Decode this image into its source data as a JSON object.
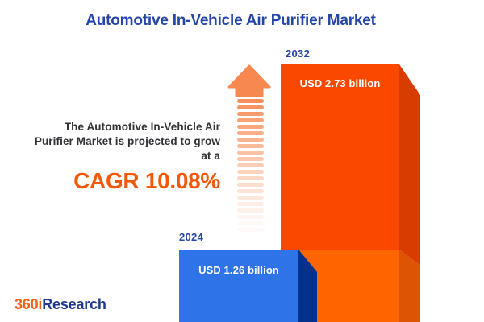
{
  "header": {
    "title": "Automotive In-Vehicle Air Purifier Market"
  },
  "annotation": {
    "lines": [
      "The Automotive In-Vehicle Air",
      "Purifier Market is projected to grow",
      "at a"
    ],
    "cagr_label": "CAGR 10.08%"
  },
  "chart_data": {
    "type": "bar",
    "title": "Automotive In-Vehicle Air Purifier Market",
    "categories": [
      "2024",
      "2032"
    ],
    "values": [
      1.26,
      2.73
    ],
    "unit": "USD billion",
    "value_labels": [
      "USD 1.26 billion",
      "USD 2.73 billion"
    ],
    "cagr_percent": 10.08,
    "xlabel": "",
    "ylabel": "",
    "legend": false,
    "bar_style": "3d-extruded",
    "annotations": [
      "growth arrow between bars, fading striped shaft pointing up"
    ]
  },
  "colors": {
    "title_blue": "#2545A8",
    "text_dark": "#2F3135",
    "accent_orange": "#F35708",
    "bar_2024_face": "#2F73E8",
    "bar_2024_side": "#04318C",
    "bar_2032_face_top": "#FB4800",
    "bar_2032_side_top": "#D83C00",
    "bar_2032_face_bottom": "#FE6400",
    "bar_2032_side_bottom": "#DC5404",
    "arrow": "#F68850",
    "logo_orange": "#F2611C",
    "logo_blue": "#20398E"
  },
  "logo": {
    "prefix": "360i",
    "suffix": "Research"
  }
}
